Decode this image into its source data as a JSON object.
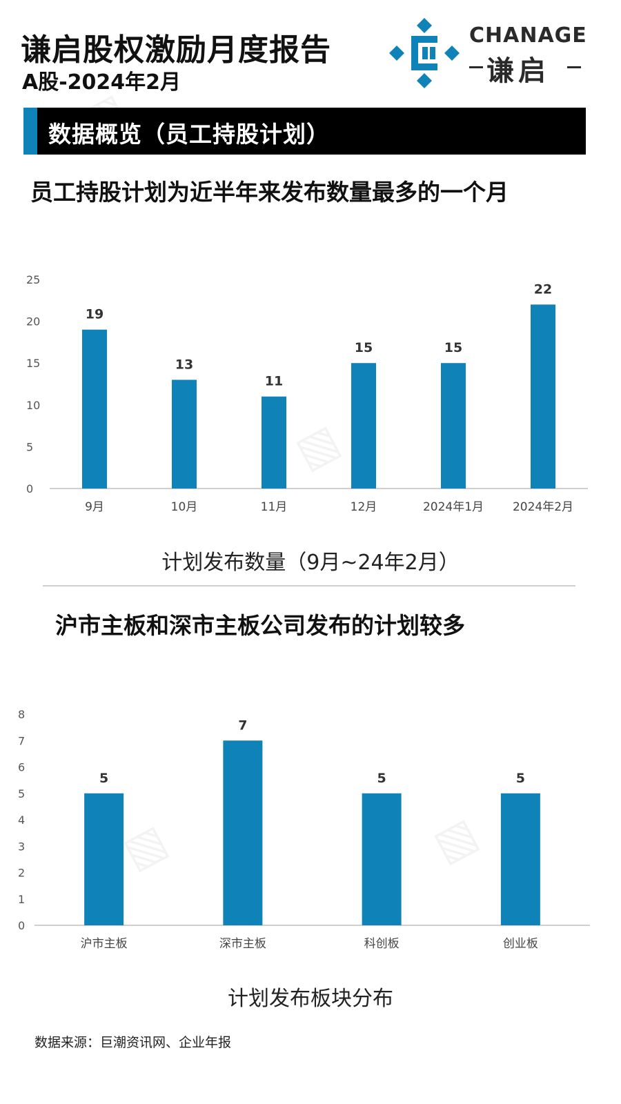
{
  "header": {
    "title": "谦启股权激励月度报告",
    "subtitle": "A股-2024年2月",
    "brand_en": "CHANAGE",
    "brand_cn": "谦启"
  },
  "section": {
    "title": "数据概览（员工持股计划）"
  },
  "headlines": {
    "first": "员工持股计划为近半年来发布数量最多的一个月",
    "second": "沪市主板和深市主板公司发布的计划较多"
  },
  "captions": {
    "first": "计划发布数量（9月~24年2月）",
    "second": "计划发布板块分布"
  },
  "footer": {
    "source": "数据来源：巨潮资讯网、企业年报"
  },
  "colors": {
    "bar": "#0f82b8",
    "accent": "#0f82b8",
    "axis": "#bfbfbf"
  },
  "chart_data": [
    {
      "type": "bar",
      "title": "",
      "categories": [
        "9月",
        "10月",
        "11月",
        "12月",
        "2024年1月",
        "2024年2月"
      ],
      "values": [
        19,
        13,
        11,
        15,
        15,
        22
      ],
      "ylim": [
        0,
        25
      ],
      "yticks": [
        0,
        5,
        10,
        15,
        20,
        25
      ],
      "grid": false,
      "data_labels": true
    },
    {
      "type": "bar",
      "title": "",
      "categories": [
        "沪市主板",
        "深市主板",
        "科创板",
        "创业板"
      ],
      "values": [
        5,
        7,
        5,
        5
      ],
      "ylim": [
        0,
        8
      ],
      "yticks": [
        0,
        1,
        2,
        3,
        4,
        5,
        6,
        7,
        8
      ],
      "grid": false,
      "data_labels": true
    }
  ]
}
